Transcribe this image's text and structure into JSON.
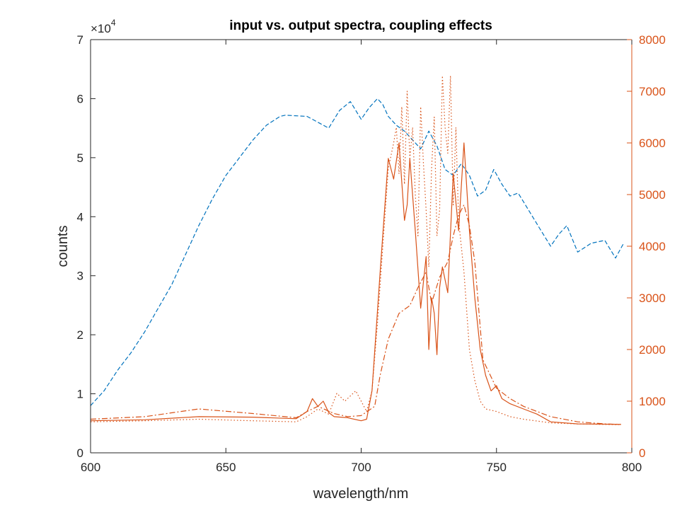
{
  "chart_data": {
    "type": "line",
    "title": "input vs. output spectra, coupling effects",
    "xlabel": "wavelength/nm",
    "ylabel_left": "counts",
    "ylabel_right": "",
    "left_exponent_base": "×10",
    "left_exponent_power": "4",
    "xlim": [
      600,
      800
    ],
    "ylim_left": [
      0,
      7
    ],
    "ylim_right": [
      0,
      8000
    ],
    "x_ticks": [
      600,
      650,
      700,
      750,
      800
    ],
    "y_left_ticks": [
      0,
      1,
      2,
      3,
      4,
      5,
      6,
      7
    ],
    "y_right_ticks": [
      0,
      1000,
      2000,
      3000,
      4000,
      5000,
      6000,
      7000,
      8000
    ],
    "grid": false,
    "colors": {
      "input": "#0072BD",
      "output": "#D95319",
      "axis": "#262626",
      "right_axis": "#D95319"
    },
    "series": [
      {
        "axis": "left",
        "style": "dashed",
        "color": "#0072BD",
        "x": [
          600,
          605,
          610,
          615,
          620,
          625,
          630,
          635,
          640,
          645,
          650,
          655,
          660,
          665,
          670,
          672,
          680,
          688,
          692,
          696,
          700,
          703,
          706,
          708,
          710,
          713,
          716,
          719,
          722,
          725,
          728,
          731,
          734,
          737,
          740,
          743,
          746,
          749,
          752,
          755,
          758,
          762,
          766,
          770,
          773,
          776,
          780,
          785,
          790,
          794,
          797
        ],
        "y": [
          0.8,
          1.05,
          1.4,
          1.7,
          2.05,
          2.45,
          2.85,
          3.35,
          3.85,
          4.3,
          4.7,
          5.0,
          5.3,
          5.55,
          5.7,
          5.72,
          5.7,
          5.5,
          5.8,
          5.95,
          5.65,
          5.85,
          6.0,
          5.9,
          5.7,
          5.55,
          5.45,
          5.3,
          5.15,
          5.45,
          5.2,
          4.8,
          4.7,
          4.9,
          4.7,
          4.35,
          4.45,
          4.8,
          4.55,
          4.35,
          4.4,
          4.1,
          3.8,
          3.5,
          3.7,
          3.85,
          3.4,
          3.55,
          3.6,
          3.3,
          3.55
        ]
      },
      {
        "axis": "right",
        "style": "solid",
        "color": "#D95319",
        "x": [
          600,
          620,
          640,
          660,
          676,
          680,
          682,
          684,
          686,
          688,
          690,
          695,
          700,
          702,
          704,
          707,
          710,
          712,
          714,
          716,
          717,
          718,
          720,
          722,
          724,
          725,
          726,
          727,
          728,
          729,
          730,
          732,
          734,
          736,
          738,
          740,
          742,
          744,
          746,
          748,
          750,
          752,
          755,
          760,
          765,
          770,
          780,
          790,
          796
        ],
        "y": [
          620,
          640,
          700,
          690,
          660,
          800,
          1050,
          900,
          1000,
          780,
          700,
          680,
          620,
          650,
          1200,
          3500,
          5700,
          5300,
          6000,
          4500,
          4800,
          5700,
          4300,
          2800,
          3800,
          2000,
          3000,
          2700,
          1900,
          3200,
          3600,
          3100,
          5400,
          4300,
          6000,
          4300,
          3000,
          2000,
          1500,
          1200,
          1300,
          1050,
          950,
          850,
          750,
          600,
          560,
          555,
          550
        ]
      },
      {
        "axis": "right",
        "style": "dashdot",
        "color": "#D95319",
        "x": [
          600,
          620,
          640,
          660,
          676,
          680,
          684,
          690,
          695,
          700,
          705,
          707,
          710,
          714,
          718,
          721,
          724,
          726,
          729,
          732,
          734,
          736,
          738,
          740,
          742,
          745,
          750,
          755,
          760,
          765,
          770,
          780,
          790,
          796
        ],
        "y": [
          650,
          700,
          850,
          760,
          680,
          800,
          900,
          760,
          700,
          720,
          900,
          1500,
          2200,
          2700,
          2850,
          3200,
          3500,
          2900,
          3400,
          3700,
          4200,
          4600,
          4800,
          4400,
          3700,
          1800,
          1250,
          1050,
          900,
          800,
          700,
          600,
          560,
          550
        ]
      },
      {
        "axis": "right",
        "style": "dotted",
        "color": "#D95319",
        "x": [
          600,
          620,
          640,
          660,
          676,
          680,
          684,
          688,
          691,
          694,
          698,
          702,
          704,
          706,
          708,
          710,
          712,
          713,
          714,
          715,
          716,
          717,
          718,
          719,
          720,
          721,
          722,
          723,
          724,
          725,
          726,
          727,
          728,
          729,
          730,
          731,
          732,
          733,
          734,
          735,
          736,
          738,
          740,
          742,
          744,
          746,
          750,
          755,
          760,
          770,
          780,
          790,
          796
        ],
        "y": [
          600,
          620,
          650,
          620,
          600,
          700,
          850,
          750,
          1150,
          1000,
          1200,
          800,
          1200,
          2500,
          4000,
          5500,
          6000,
          6300,
          5400,
          6700,
          5200,
          7000,
          5700,
          6300,
          5000,
          4200,
          6700,
          5600,
          4700,
          3600,
          5500,
          6500,
          4200,
          4700,
          7300,
          6300,
          5800,
          7300,
          4800,
          6300,
          4500,
          3500,
          2000,
          1400,
          1000,
          850,
          800,
          700,
          650,
          580,
          560,
          550,
          545
        ]
      }
    ]
  }
}
